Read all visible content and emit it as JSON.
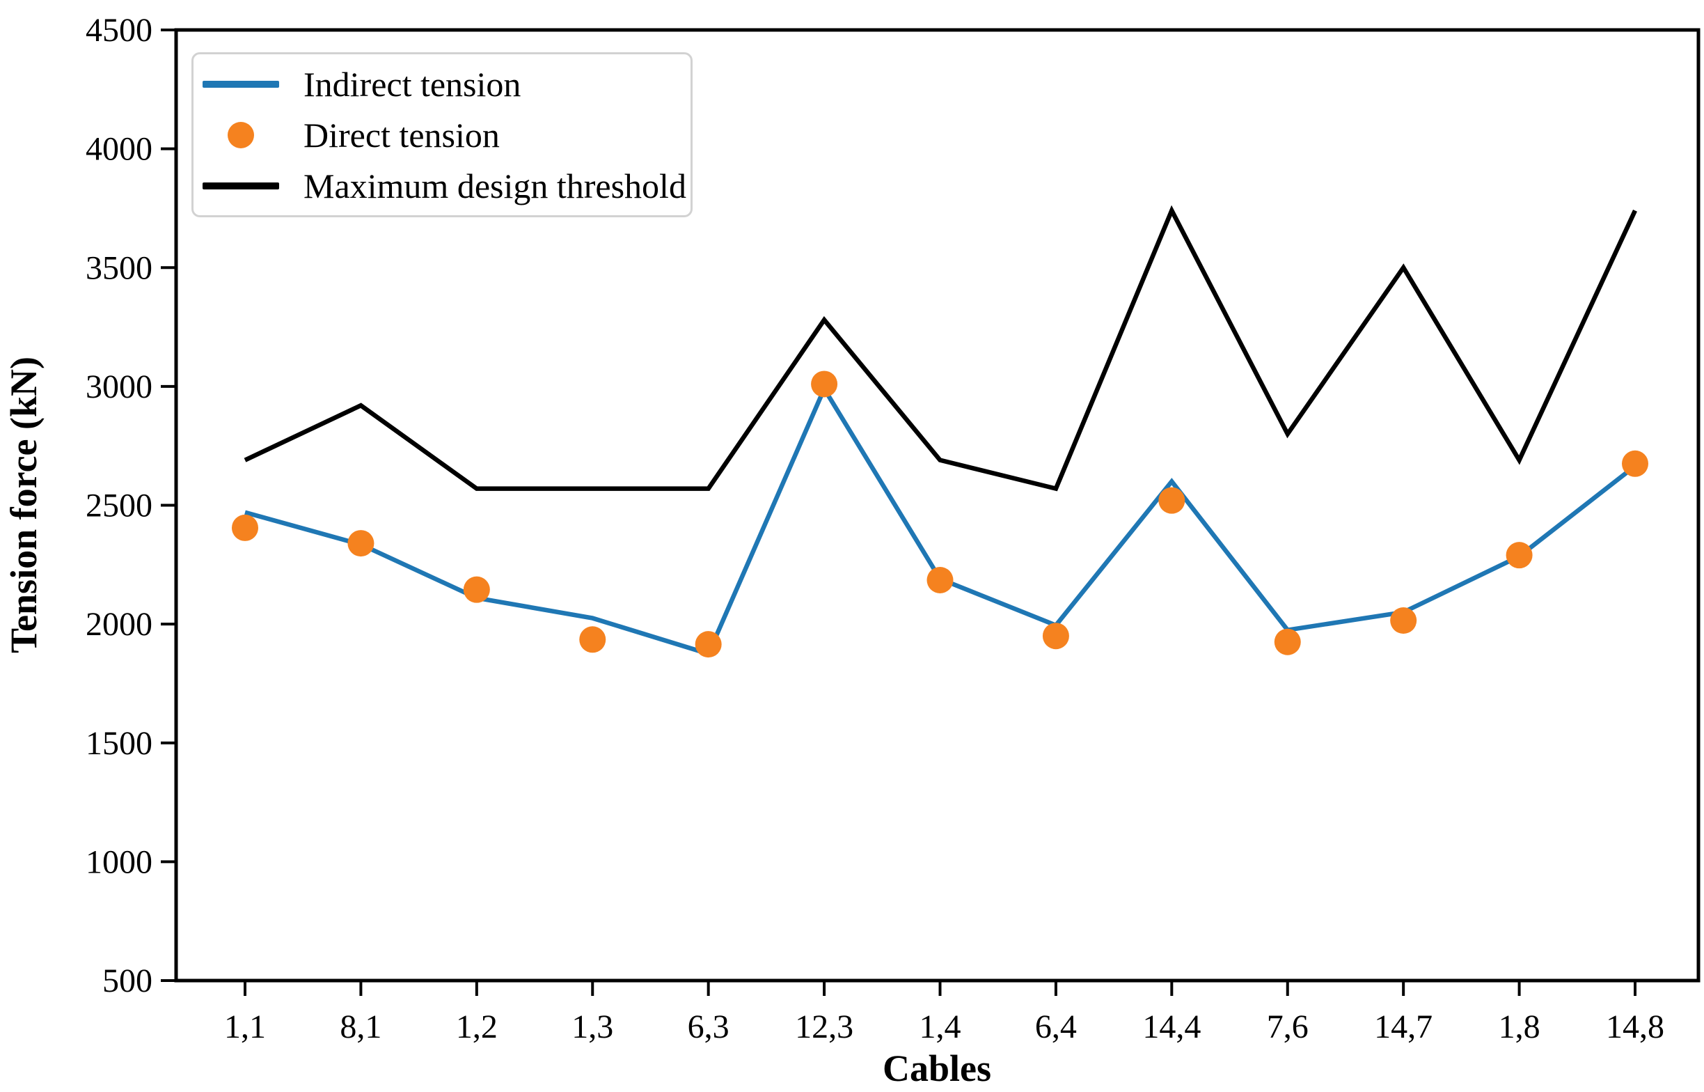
{
  "chart_data": {
    "type": "line",
    "title": "",
    "xlabel": "Cables",
    "ylabel": "Tension force (kN)",
    "ylim": [
      500,
      4500
    ],
    "y_ticks": [
      500,
      1000,
      1500,
      2000,
      2500,
      3000,
      3500,
      4000,
      4500
    ],
    "grid": false,
    "legend_position": "upper left",
    "categories": [
      "1,1",
      "8,1",
      "1,2",
      "1,3",
      "6,3",
      "12,3",
      "1,4",
      "6,4",
      "14,4",
      "7,6",
      "14,7",
      "1,8",
      "14,8"
    ],
    "series": [
      {
        "name": "Indirect tension",
        "style": "line",
        "color": "#1f77b4",
        "values": [
          2470,
          2335,
          2110,
          2025,
          1875,
          2990,
          2190,
          1995,
          2600,
          1975,
          2050,
          2285,
          2665
        ]
      },
      {
        "name": "Direct tension",
        "style": "scatter",
        "color": "#f5821f",
        "values": [
          2405,
          2340,
          2145,
          1935,
          1915,
          3010,
          2185,
          1950,
          2520,
          1925,
          2015,
          2290,
          2675
        ]
      },
      {
        "name": "Maximum design threshold",
        "style": "line",
        "color": "#000000",
        "values": [
          2690,
          2920,
          2570,
          2570,
          2570,
          3280,
          2690,
          2570,
          3740,
          2800,
          3500,
          2690,
          3740
        ]
      }
    ]
  }
}
